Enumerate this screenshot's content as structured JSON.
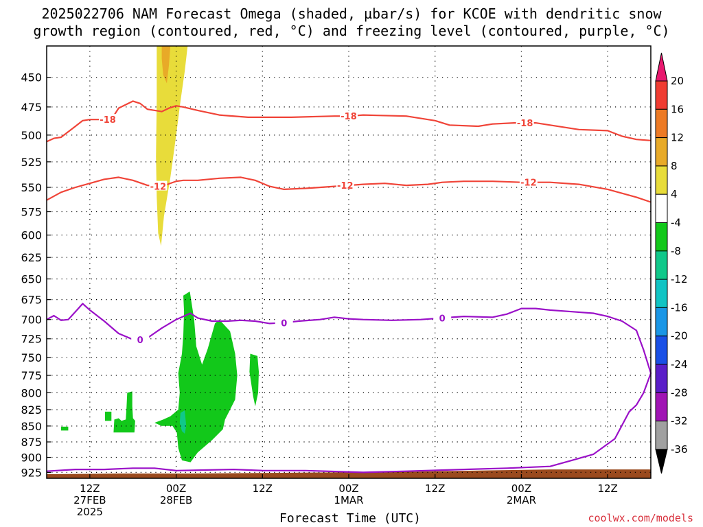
{
  "title": {
    "line1": "2025022706 NAM Forecast Omega (shaded, µbar/s) for KCOE with dendritic snow",
    "line2": "growth region (contoured, red, °C) and freezing level (contoured, purple, °C)"
  },
  "credit": "coolwx.com/models",
  "chart_data": {
    "type": "contour",
    "xlabel": "Forecast Time (UTC)",
    "ylabel": "",
    "x_ticks": [
      {
        "t": 6,
        "lines": [
          "12Z",
          "27FEB",
          "2025"
        ]
      },
      {
        "t": 18,
        "lines": [
          "00Z",
          "28FEB"
        ]
      },
      {
        "t": 30,
        "lines": [
          "12Z"
        ]
      },
      {
        "t": 42,
        "lines": [
          "00Z",
          "1MAR"
        ]
      },
      {
        "t": 54,
        "lines": [
          "12Z"
        ]
      },
      {
        "t": 66,
        "lines": [
          "00Z",
          "2MAR"
        ]
      },
      {
        "t": 78,
        "lines": [
          "12Z"
        ]
      }
    ],
    "xlim": [
      0,
      84
    ],
    "y_ticks": [
      450,
      475,
      500,
      525,
      550,
      575,
      600,
      625,
      650,
      675,
      700,
      725,
      750,
      775,
      800,
      825,
      850,
      875,
      900,
      925
    ],
    "ylim_hPa": [
      935,
      425
    ],
    "y_scale": "log-pressure",
    "grid": true,
    "colorbar": {
      "labels": [
        20,
        16,
        12,
        8,
        4,
        -4,
        -8,
        -12,
        -16,
        -20,
        -24,
        -28,
        -32,
        -36
      ],
      "colors": [
        "#e8186e",
        "#f03c32",
        "#ed7a24",
        "#e8aa28",
        "#e8dc3a",
        "#ffffff",
        "#12c81a",
        "#10c88a",
        "#10c4c4",
        "#1a96e6",
        "#1a50e6",
        "#5a1ec8",
        "#a014b4",
        "#a0a0a0",
        "#000000"
      ]
    },
    "contours": [
      {
        "label": "-18",
        "color": "#f04438",
        "points": [
          [
            0,
            506
          ],
          [
            1,
            503
          ],
          [
            2,
            502
          ],
          [
            4,
            492
          ],
          [
            5,
            487
          ],
          [
            6,
            486
          ],
          [
            9,
            486
          ],
          [
            10,
            476
          ],
          [
            12,
            470
          ],
          [
            13,
            472
          ],
          [
            14,
            477
          ],
          [
            16,
            479
          ],
          [
            17,
            476
          ],
          [
            18,
            474
          ],
          [
            19,
            475
          ],
          [
            21,
            478
          ],
          [
            24,
            482
          ],
          [
            28,
            484
          ],
          [
            34,
            484
          ],
          [
            40,
            483
          ],
          [
            42,
            483
          ],
          [
            44,
            482
          ],
          [
            50,
            483
          ],
          [
            54,
            487
          ],
          [
            56,
            491
          ],
          [
            60,
            492
          ],
          [
            62,
            490
          ],
          [
            65,
            489
          ],
          [
            68,
            489
          ],
          [
            70,
            491
          ],
          [
            74,
            495
          ],
          [
            78,
            496
          ],
          [
            80,
            501
          ],
          [
            82,
            504
          ],
          [
            84,
            505
          ]
        ],
        "label_t": [
          8.5,
          42,
          66.5
        ]
      },
      {
        "label": "-12",
        "color": "#f04438",
        "points": [
          [
            0,
            563
          ],
          [
            2,
            555
          ],
          [
            4,
            550
          ],
          [
            6,
            546
          ],
          [
            8,
            542
          ],
          [
            10,
            540
          ],
          [
            12,
            543
          ],
          [
            14,
            548
          ],
          [
            16,
            549
          ],
          [
            18,
            544
          ],
          [
            19,
            543
          ],
          [
            21,
            543
          ],
          [
            24,
            541
          ],
          [
            27,
            540
          ],
          [
            29,
            543
          ],
          [
            31,
            549
          ],
          [
            33,
            552
          ],
          [
            36,
            551
          ],
          [
            40,
            549
          ],
          [
            42,
            548
          ],
          [
            44,
            547
          ],
          [
            47,
            546
          ],
          [
            50,
            548
          ],
          [
            53,
            547
          ],
          [
            55,
            545
          ],
          [
            58,
            544
          ],
          [
            62,
            544
          ],
          [
            66,
            545
          ],
          [
            70,
            545
          ],
          [
            74,
            547
          ],
          [
            78,
            552
          ],
          [
            82,
            560
          ],
          [
            84,
            565
          ]
        ],
        "label_t": [
          15.5,
          41.5,
          67
        ]
      },
      {
        "label": "0",
        "color": "#9a10c8",
        "points": [
          [
            0,
            700
          ],
          [
            1,
            695
          ],
          [
            2,
            701
          ],
          [
            3,
            700
          ],
          [
            4,
            690
          ],
          [
            5,
            680
          ],
          [
            6,
            688
          ],
          [
            8,
            702
          ],
          [
            10,
            718
          ],
          [
            12,
            726
          ],
          [
            14,
            724
          ],
          [
            16,
            711
          ],
          [
            18,
            700
          ],
          [
            20,
            692
          ],
          [
            21,
            698
          ],
          [
            23,
            702
          ],
          [
            25,
            702
          ],
          [
            27,
            701
          ],
          [
            29,
            702
          ],
          [
            31,
            705
          ],
          [
            33,
            704
          ],
          [
            35,
            702
          ],
          [
            38,
            700
          ],
          [
            40,
            697
          ],
          [
            42,
            699
          ],
          [
            44,
            700
          ],
          [
            48,
            701
          ],
          [
            52,
            700
          ],
          [
            55,
            698
          ],
          [
            58,
            696
          ],
          [
            62,
            697
          ],
          [
            64,
            693
          ],
          [
            66,
            686
          ],
          [
            68,
            686
          ],
          [
            70,
            688
          ],
          [
            73,
            690
          ],
          [
            76,
            692
          ],
          [
            78,
            696
          ],
          [
            80,
            702
          ],
          [
            82,
            714
          ],
          [
            83,
            740
          ],
          [
            84,
            772
          ],
          [
            83,
            800
          ],
          [
            82,
            818
          ],
          [
            81,
            828
          ],
          [
            79,
            870
          ],
          [
            76,
            895
          ],
          [
            73,
            905
          ],
          [
            70,
            915
          ],
          [
            64,
            918
          ],
          [
            58,
            920
          ],
          [
            50,
            923
          ],
          [
            44,
            925
          ],
          [
            36,
            922
          ],
          [
            30,
            922
          ],
          [
            26,
            920
          ],
          [
            18,
            922
          ],
          [
            15,
            918
          ],
          [
            12,
            918
          ],
          [
            8,
            920
          ],
          [
            4,
            920
          ],
          [
            0,
            923
          ]
        ],
        "label_t": [
          13,
          33,
          55
        ]
      }
    ],
    "shaded": [
      {
        "level": "4 to 8",
        "color": "#e8dc3a"
      },
      {
        "level": "8 to 12",
        "color": "#e8aa28"
      },
      {
        "level": "-4 to -8",
        "color": "#12c81a"
      },
      {
        "level": "-8 to -12",
        "color": "#10c88a"
      },
      {
        "level": "terrain",
        "color": "#9a4a1e"
      }
    ]
  }
}
